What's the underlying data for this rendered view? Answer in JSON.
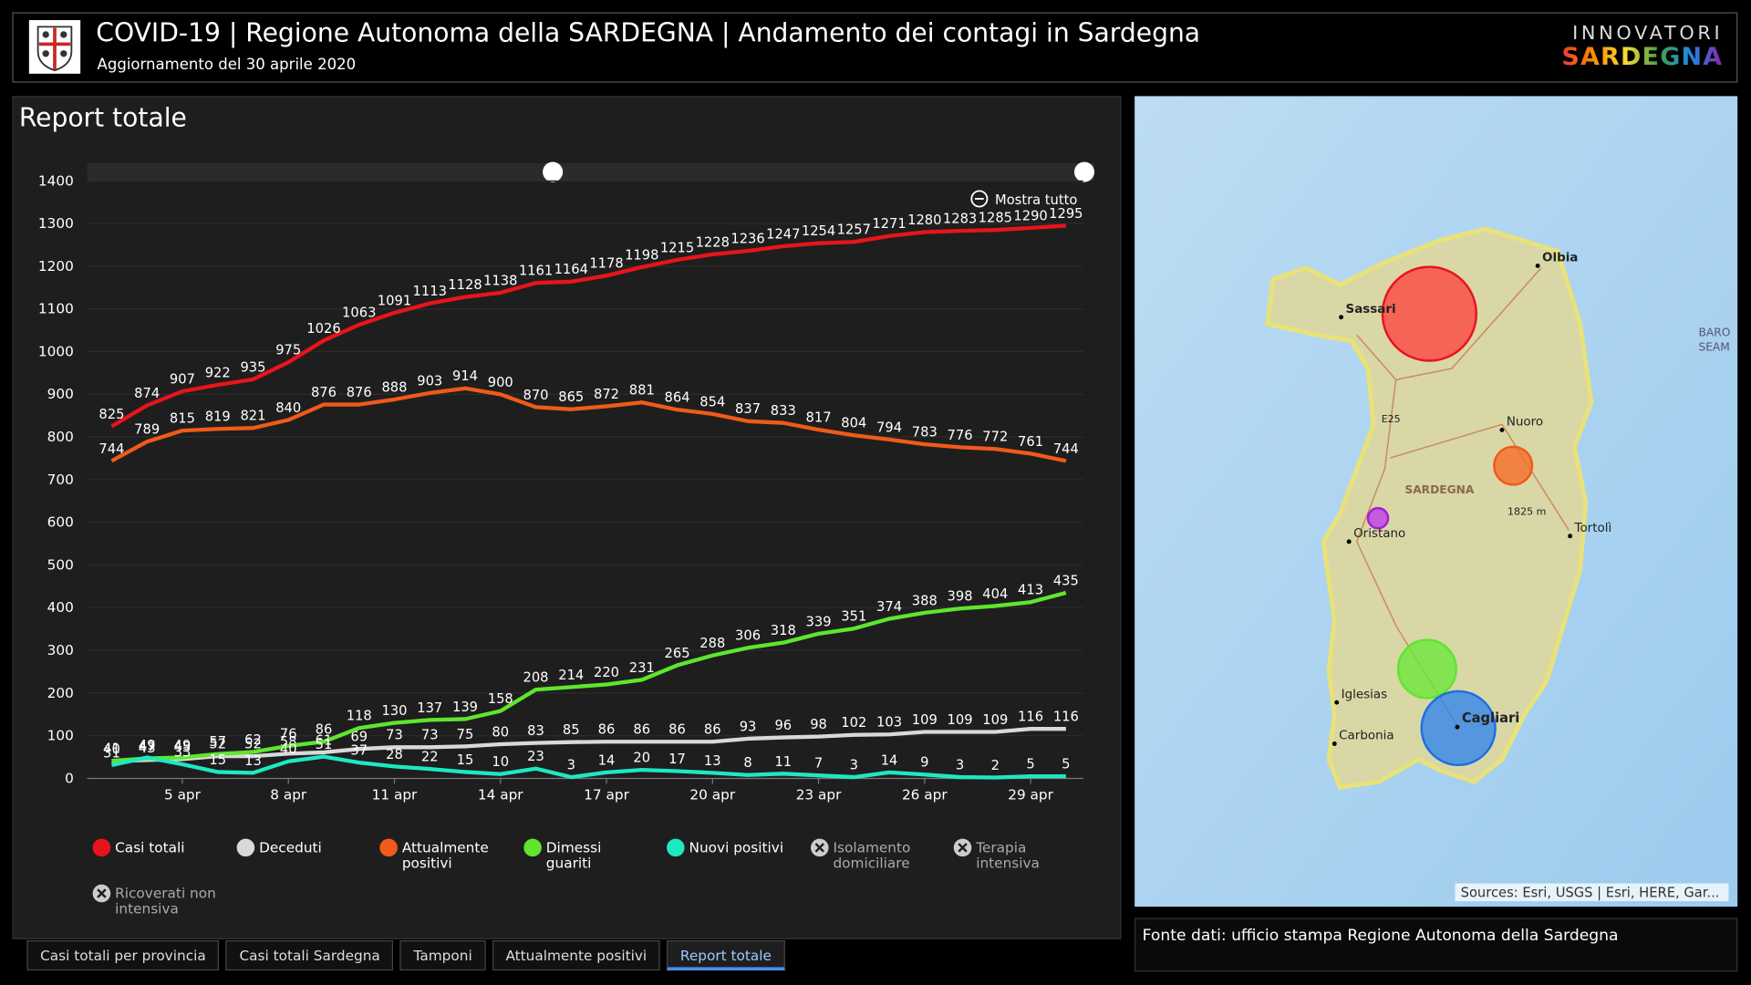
{
  "header": {
    "title": "COVID-19 | Regione Autonoma della SARDEGNA | Andamento dei contagi in Sardegna",
    "subtitle": "Aggiornamento del 30 aprile 2020",
    "brand_top": "INNOVATORI",
    "brand_bottom": "SARDEGNA"
  },
  "panel_title": "Report totale",
  "zoom_control": "Mostra tutto",
  "chart_data": {
    "type": "line",
    "categories": [
      null,
      null,
      "5 apr",
      null,
      null,
      "8 apr",
      null,
      null,
      "11 apr",
      null,
      null,
      "14 apr",
      null,
      null,
      "17 apr",
      null,
      null,
      "20 apr",
      null,
      null,
      "23 apr",
      null,
      null,
      "26 apr",
      null,
      null,
      "29 apr",
      null
    ],
    "ylim": [
      0,
      1400
    ],
    "yticks": [
      0,
      100,
      200,
      300,
      400,
      500,
      600,
      700,
      800,
      900,
      1000,
      1100,
      1200,
      1300,
      1400
    ],
    "grid": true,
    "series": [
      {
        "name": "Casi totali",
        "color": "#e8141c",
        "values": [
          825,
          874,
          907,
          922,
          935,
          975,
          1026,
          1063,
          1091,
          1113,
          1128,
          1138,
          1161,
          1164,
          1178,
          1198,
          1215,
          1228,
          1236,
          1247,
          1254,
          1257,
          1271,
          1280,
          1283,
          1285,
          1290,
          1295
        ]
      },
      {
        "name": "Deceduti",
        "color": "#d9d9d9",
        "values": [
          40,
          43,
          45,
          52,
          52,
          58,
          61,
          69,
          73,
          73,
          75,
          80,
          83,
          85,
          86,
          86,
          86,
          86,
          93,
          96,
          98,
          102,
          103,
          109,
          109,
          109,
          116,
          116
        ]
      },
      {
        "name": "Attualmente positivi",
        "color": "#f05a1a",
        "values": [
          744,
          789,
          815,
          819,
          821,
          840,
          876,
          876,
          888,
          903,
          914,
          900,
          870,
          865,
          872,
          881,
          864,
          854,
          837,
          833,
          817,
          804,
          794,
          783,
          776,
          772,
          761,
          744
        ]
      },
      {
        "name": "Dimessi guariti",
        "color": "#5ee62e",
        "values": [
          41,
          47,
          49,
          57,
          62,
          76,
          86,
          118,
          130,
          137,
          139,
          158,
          208,
          214,
          220,
          231,
          265,
          288,
          306,
          318,
          339,
          351,
          374,
          388,
          398,
          404,
          413,
          435
        ]
      },
      {
        "name": "Nuovi positivi",
        "color": "#1ee8c0",
        "values": [
          31,
          49,
          33,
          15,
          13,
          40,
          51,
          37,
          28,
          22,
          15,
          10,
          23,
          3,
          14,
          20,
          17,
          13,
          8,
          11,
          7,
          3,
          14,
          9,
          3,
          2,
          5,
          5
        ]
      }
    ],
    "hidden_series": [
      "Isolamento domiciliare",
      "Terapia intensiva",
      "Ricoverati non intensiva"
    ]
  },
  "map": {
    "labels": [
      "Olbia",
      "Sassari",
      "E25",
      "Nuoro",
      "SARDEGNA",
      "1825 m",
      "Oristano",
      "Tortolì",
      "Iglesias",
      "Cagliari",
      "Carbonia",
      "BARO",
      "SEAM"
    ],
    "attribution": "Sources: Esri, USGS | Esri, HERE, Gar..."
  },
  "source_note": "Fonte dati: ufficio stampa Regione Autonoma della Sardegna",
  "tabs": [
    "Casi totali per provincia",
    "Casi totali Sardegna",
    "Tamponi",
    "Attualmente positivi",
    "Report totale"
  ],
  "active_tab": 4
}
